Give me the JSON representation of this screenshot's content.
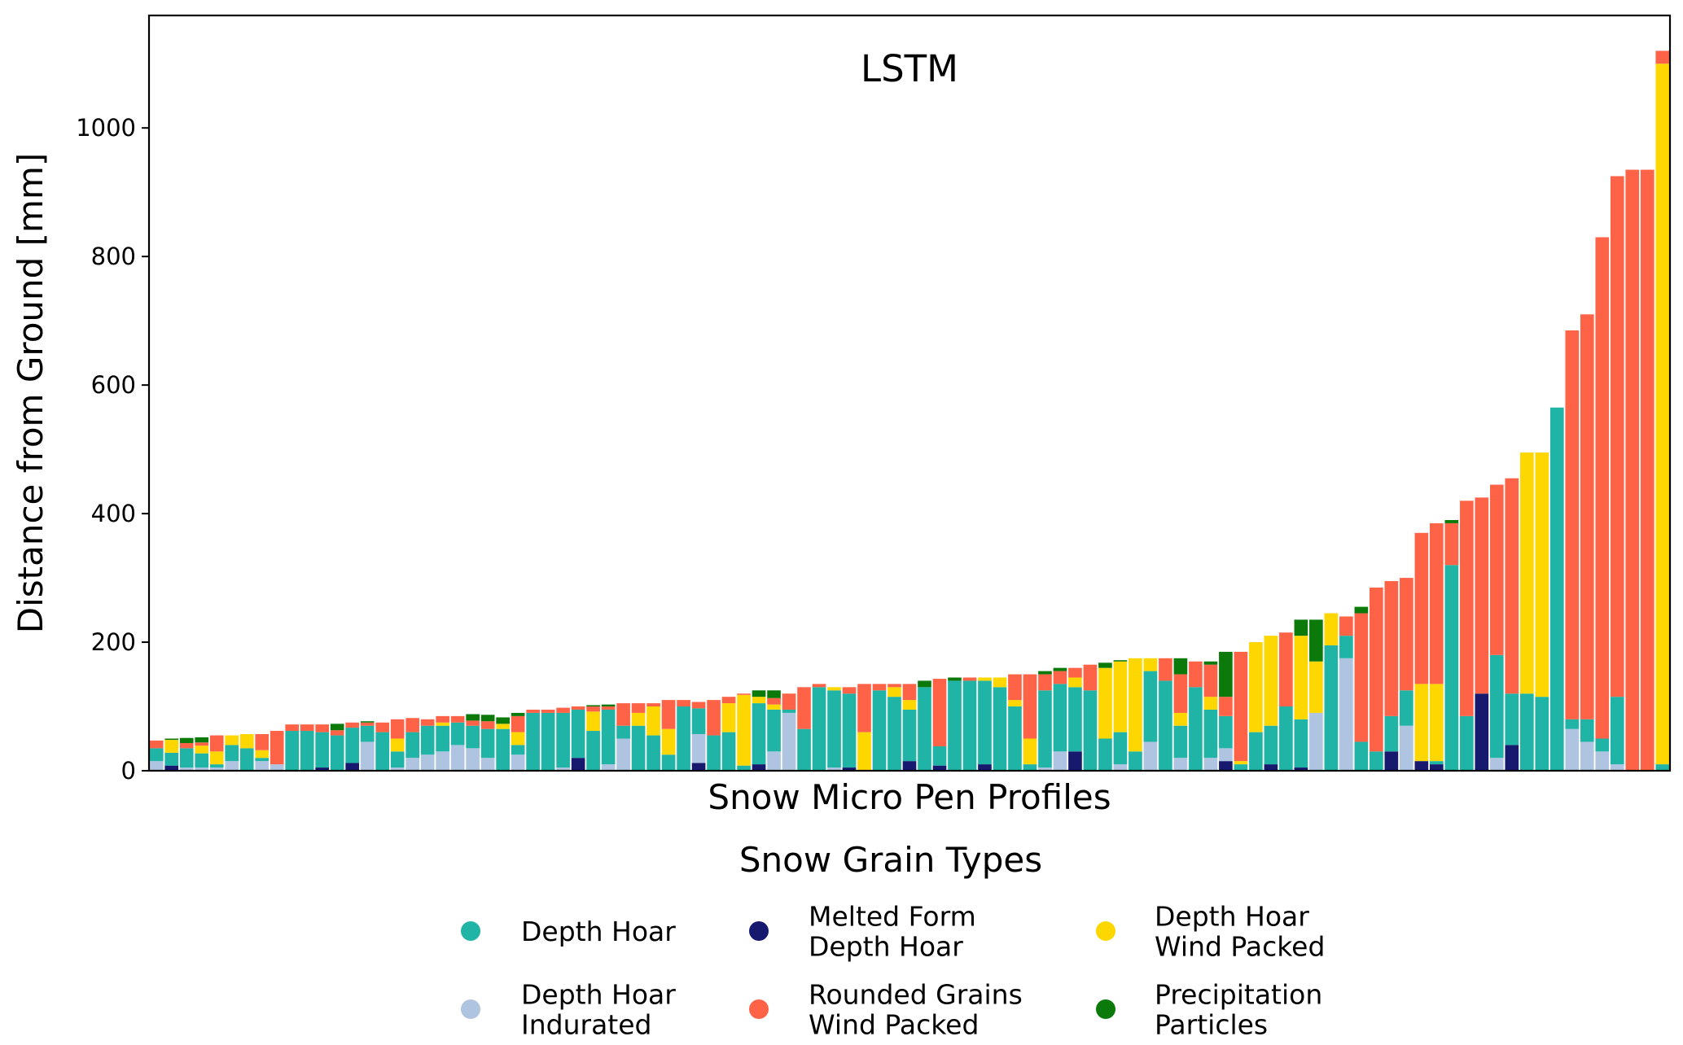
{
  "chart_data": {
    "type": "bar",
    "stacked": true,
    "title": "LSTM",
    "xlabel": "Snow Micro Pen Profiles",
    "ylabel": "Distance from Ground [mm]",
    "ylim": [
      0,
      1175
    ],
    "yticks": [
      0,
      200,
      400,
      600,
      800,
      1000
    ],
    "grid": false,
    "legend": {
      "title": "Snow Grain Types",
      "placement": "bottom-center",
      "entries": [
        {
          "key": "DH",
          "lines": [
            "Depth Hoar"
          ],
          "color": "#1fb4a6"
        },
        {
          "key": "DHI",
          "lines": [
            "Depth Hoar",
            "Indurated"
          ],
          "color": "#aec4e1"
        },
        {
          "key": "MF",
          "lines": [
            "Melted Form",
            "Depth Hoar"
          ],
          "color": "#16196e"
        },
        {
          "key": "RG",
          "lines": [
            "Rounded Grains",
            "Wind Packed"
          ],
          "color": "#ff6347"
        },
        {
          "key": "DHW",
          "lines": [
            "Depth Hoar",
            "Wind Packed"
          ],
          "color": "#ffd700"
        },
        {
          "key": "PP",
          "lines": [
            "Precipitation",
            "Particles"
          ],
          "color": "#0b7a0b"
        }
      ]
    },
    "series_order": [
      "MF",
      "DHI",
      "DH",
      "DHW",
      "RG",
      "PP"
    ],
    "bars": [
      {
        "DHI": 15,
        "DH": 20,
        "RG": 12
      },
      {
        "MF": 8,
        "DH": 20,
        "DHW": 20,
        "PP": 2
      },
      {
        "DHI": 5,
        "DH": 30,
        "RG": 8,
        "PP": 8
      },
      {
        "DHI": 5,
        "DH": 22,
        "DHW": 12,
        "RG": 5,
        "PP": 8
      },
      {
        "DHI": 5,
        "DH": 5,
        "DHW": 20,
        "RG": 25
      },
      {
        "DHI": 15,
        "DH": 25,
        "DHW": 15
      },
      {
        "DH": 35,
        "DHW": 22
      },
      {
        "DHI": 15,
        "DH": 5,
        "DHW": 12,
        "RG": 25
      },
      {
        "DHI": 10,
        "RG": 52
      },
      {
        "DH": 62,
        "RG": 10
      },
      {
        "DH": 62,
        "RG": 10
      },
      {
        "MF": 5,
        "DH": 55,
        "RG": 12
      },
      {
        "DH": 55,
        "RG": 8,
        "PP": 10
      },
      {
        "MF": 12,
        "DH": 55,
        "RG": 8
      },
      {
        "DHI": 45,
        "DH": 25,
        "RG": 5,
        "PP": 2
      },
      {
        "DH": 60,
        "RG": 15
      },
      {
        "DHI": 5,
        "DH": 25,
        "DHW": 20,
        "RG": 30
      },
      {
        "DHI": 20,
        "DH": 40,
        "RG": 22
      },
      {
        "DHI": 25,
        "DH": 45,
        "RG": 10
      },
      {
        "DHI": 30,
        "DH": 40,
        "DHW": 5,
        "RG": 10
      },
      {
        "DHI": 40,
        "DH": 35,
        "RG": 10
      },
      {
        "DHI": 35,
        "DH": 35,
        "RG": 8,
        "PP": 10
      },
      {
        "DHI": 20,
        "DH": 45,
        "RG": 12,
        "PP": 10
      },
      {
        "DH": 65,
        "DHW": 8,
        "PP": 10
      },
      {
        "DHI": 25,
        "DH": 15,
        "DHW": 20,
        "RG": 25,
        "PP": 5
      },
      {
        "DH": 90,
        "RG": 5
      },
      {
        "DH": 90,
        "RG": 5
      },
      {
        "DHI": 5,
        "DH": 85,
        "RG": 8
      },
      {
        "MF": 20,
        "DH": 75,
        "RG": 5
      },
      {
        "DH": 62,
        "DHW": 30,
        "RG": 8,
        "PP": 2
      },
      {
        "DHI": 10,
        "DH": 85,
        "RG": 5,
        "PP": 3
      },
      {
        "DHI": 50,
        "DH": 20,
        "RG": 35
      },
      {
        "DH": 70,
        "DHW": 20,
        "RG": 15
      },
      {
        "DH": 55,
        "DHW": 45,
        "RG": 5
      },
      {
        "DH": 25,
        "DHW": 40,
        "RG": 45
      },
      {
        "DH": 100,
        "RG": 10
      },
      {
        "MF": 12,
        "DHI": 45,
        "DH": 40,
        "RG": 10
      },
      {
        "DH": 55,
        "RG": 55
      },
      {
        "DH": 60,
        "DHW": 45,
        "RG": 10
      },
      {
        "DH": 8,
        "DHW": 110,
        "RG": 2
      },
      {
        "MF": 10,
        "DH": 95,
        "DHW": 10,
        "PP": 10
      },
      {
        "DHI": 30,
        "DH": 65,
        "DHW": 8,
        "RG": 10,
        "PP": 12
      },
      {
        "DHI": 90,
        "DH": 5,
        "RG": 25
      },
      {
        "DH": 65,
        "RG": 65
      },
      {
        "DH": 130,
        "RG": 5
      },
      {
        "DHI": 5,
        "DH": 120,
        "DHW": 5
      },
      {
        "MF": 5,
        "DH": 115,
        "RG": 10
      },
      {
        "DHW": 60,
        "RG": 75
      },
      {
        "DH": 125,
        "RG": 10
      },
      {
        "DH": 115,
        "DHW": 15,
        "RG": 5
      },
      {
        "MF": 15,
        "DH": 80,
        "DHW": 15,
        "RG": 25
      },
      {
        "DH": 130,
        "PP": 10
      },
      {
        "MF": 8,
        "DH": 30,
        "RG": 105
      },
      {
        "DH": 140,
        "PP": 5
      },
      {
        "DH": 140,
        "RG": 5
      },
      {
        "MF": 10,
        "DH": 130,
        "DHW": 5
      },
      {
        "DH": 130,
        "DHW": 15
      },
      {
        "DH": 100,
        "DHW": 10,
        "RG": 40
      },
      {
        "DH": 10,
        "DHW": 40,
        "RG": 100
      },
      {
        "DHI": 5,
        "DH": 120,
        "RG": 25,
        "PP": 5
      },
      {
        "DHI": 30,
        "DH": 105,
        "RG": 20,
        "PP": 5
      },
      {
        "MF": 30,
        "DH": 100,
        "DHW": 15,
        "RG": 15
      },
      {
        "DH": 125,
        "RG": 40
      },
      {
        "DH": 50,
        "DHW": 110,
        "PP": 8
      },
      {
        "DHI": 10,
        "DH": 50,
        "DHW": 110,
        "PP": 2
      },
      {
        "DH": 30,
        "DHW": 145
      },
      {
        "DHI": 45,
        "DH": 110,
        "DHW": 20
      },
      {
        "DH": 140,
        "RG": 35
      },
      {
        "DHI": 20,
        "DH": 50,
        "DHW": 20,
        "RG": 60,
        "PP": 25
      },
      {
        "DH": 130,
        "RG": 40
      },
      {
        "DHI": 20,
        "DH": 75,
        "DHW": 20,
        "RG": 50,
        "PP": 5
      },
      {
        "MF": 15,
        "DHI": 20,
        "DH": 50,
        "RG": 30,
        "PP": 70
      },
      {
        "DH": 10,
        "DHW": 5,
        "RG": 170
      },
      {
        "DH": 60,
        "DHW": 140
      },
      {
        "MF": 10,
        "DH": 60,
        "DHW": 140
      },
      {
        "DH": 100,
        "RG": 115
      },
      {
        "MF": 5,
        "DH": 75,
        "DHW": 130,
        "PP": 25
      },
      {
        "DHI": 90,
        "DHW": 80,
        "PP": 65
      },
      {
        "DH": 195,
        "DHW": 50
      },
      {
        "DHI": 175,
        "DH": 35,
        "RG": 30
      },
      {
        "DH": 45,
        "RG": 200,
        "PP": 10
      },
      {
        "DH": 30,
        "RG": 255
      },
      {
        "MF": 30,
        "DH": 55,
        "RG": 210
      },
      {
        "DHI": 70,
        "DH": 55,
        "RG": 175
      },
      {
        "MF": 15,
        "DHW": 120,
        "RG": 235
      },
      {
        "MF": 10,
        "DH": 5,
        "DHW": 120,
        "RG": 250
      },
      {
        "DH": 320,
        "RG": 65,
        "PP": 5
      },
      {
        "DH": 85,
        "RG": 335
      },
      {
        "MF": 120,
        "RG": 305
      },
      {
        "DHI": 20,
        "DH": 160,
        "RG": 265
      },
      {
        "MF": 40,
        "DH": 80,
        "RG": 335
      },
      {
        "DH": 120,
        "DHW": 375
      },
      {
        "DH": 115,
        "DHW": 380
      },
      {
        "DH": 565
      },
      {
        "DHI": 65,
        "DH": 15,
        "RG": 605
      },
      {
        "DHI": 45,
        "DH": 35,
        "RG": 630
      },
      {
        "DHI": 30,
        "DH": 20,
        "RG": 780
      },
      {
        "DHI": 10,
        "DH": 105,
        "RG": 810
      },
      {
        "RG": 935
      },
      {
        "RG": 935
      },
      {
        "DH": 10,
        "RG": 20,
        "DHW": 1090
      }
    ]
  }
}
